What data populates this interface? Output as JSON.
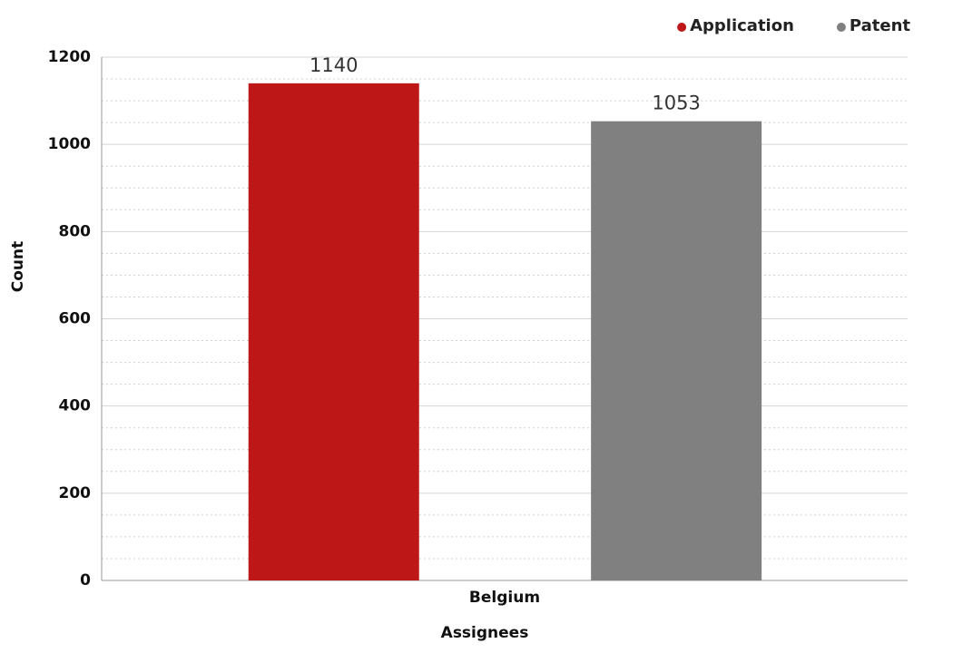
{
  "chart_data": {
    "type": "bar",
    "x_label": "Assignees",
    "y_label": "Count",
    "categories": [
      "Belgium"
    ],
    "series": [
      {
        "name": "Application",
        "color": "#be1717",
        "values": [
          1140
        ]
      },
      {
        "name": "Patent",
        "color": "#808080",
        "values": [
          1053
        ]
      }
    ],
    "ylim": [
      0,
      1200
    ],
    "yticks": [
      0,
      200,
      400,
      600,
      800,
      1000,
      1200
    ],
    "minor_yticks": [
      50,
      100,
      150,
      250,
      300,
      350,
      450,
      500,
      550,
      650,
      700,
      750,
      850,
      900,
      950,
      1050,
      1100,
      1150
    ],
    "grid": true,
    "legend": "top-right",
    "data_labels": true
  }
}
